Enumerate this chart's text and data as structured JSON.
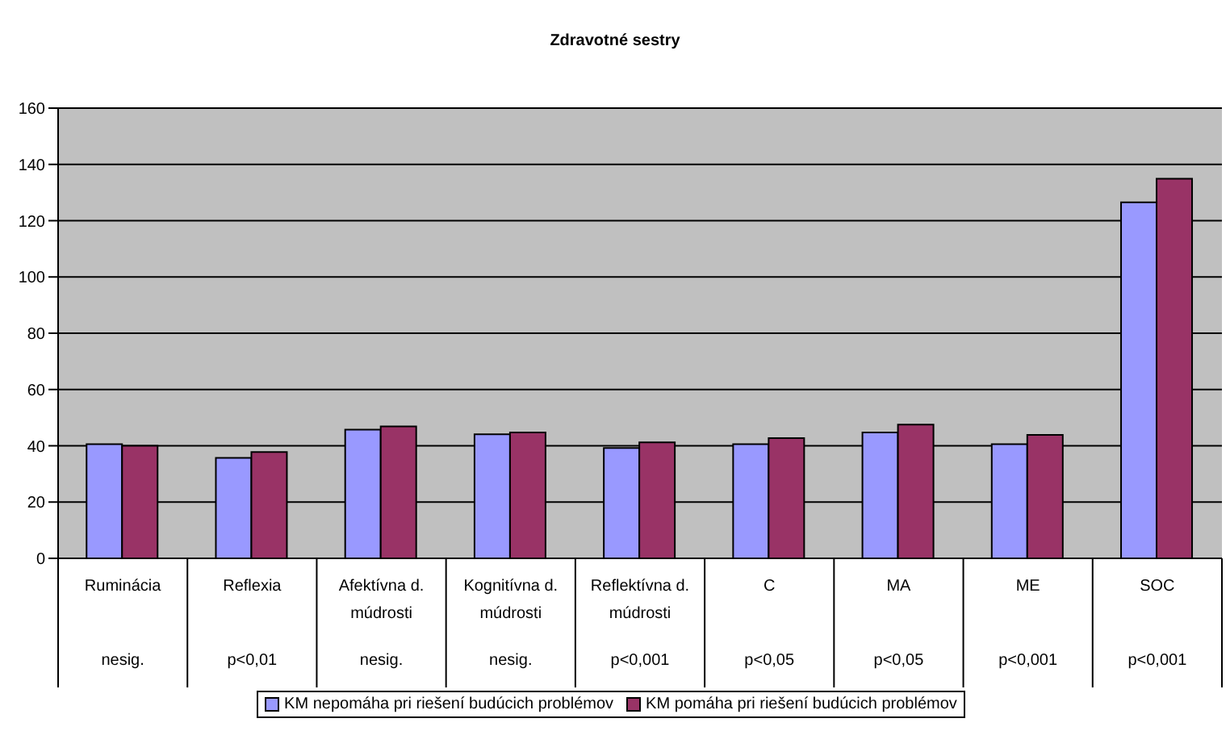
{
  "chart_data": {
    "type": "bar",
    "title": "Zdravotné sestry",
    "categories": [
      "Ruminácia",
      "Reflexia",
      "Afektívna d. múdrosti",
      "Kognitívna d. múdrosti",
      "Reflektívna d. múdrosti",
      "C",
      "MA",
      "ME",
      "SOC"
    ],
    "series": [
      {
        "name": "KM nepomáha pri riešení budúcich problémov",
        "color": "#9999ff",
        "values": [
          40.6,
          35.7,
          45.7,
          44.1,
          39.2,
          40.6,
          44.7,
          40.6,
          126.5
        ]
      },
      {
        "name": "KM pomáha pri riešení budúcich problémov",
        "color": "#993366",
        "values": [
          40.0,
          37.8,
          46.9,
          44.7,
          41.2,
          42.7,
          47.5,
          43.9,
          134.9
        ]
      }
    ],
    "annotations": [
      "nesig.",
      "p<0,01",
      "nesig.",
      "nesig.",
      "p<0,001",
      "p<0,05",
      "p<0,05",
      "p<0,001",
      "p<0,001"
    ],
    "ylim": [
      0,
      160
    ],
    "yticks": [
      0,
      20,
      40,
      60,
      80,
      100,
      120,
      140,
      160
    ],
    "grid": "y",
    "legend": "bottom"
  }
}
